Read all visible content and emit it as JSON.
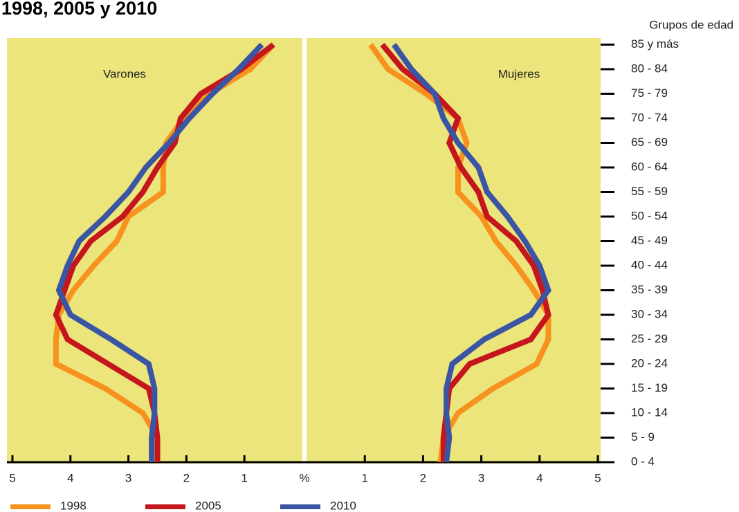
{
  "chart_data": {
    "type": "line",
    "title": "1998, 2005 y 2010",
    "ylabel": "Grupos de edad",
    "xlabel": "%",
    "categories": [
      "0 - 4",
      "5 - 9",
      "10 - 14",
      "15 - 19",
      "20 - 24",
      "25 - 29",
      "30 - 34",
      "35 - 39",
      "40 - 44",
      "45 - 49",
      "50 - 54",
      "55 - 59",
      "60 - 64",
      "65 - 69",
      "70 - 74",
      "75 - 79",
      "80 - 84",
      "85 y más"
    ],
    "xlim": [
      0,
      5
    ],
    "xticks": [
      1,
      2,
      3,
      4,
      5
    ],
    "panels": [
      {
        "title": "Varones",
        "reversed": true,
        "series": [
          {
            "name": "1998",
            "color": "#f7921e",
            "values": [
              2.5,
              2.5,
              2.75,
              3.4,
              4.25,
              4.25,
              4.2,
              3.95,
              3.6,
              3.2,
              3.0,
              2.4,
              2.4,
              2.35,
              2.05,
              1.6,
              0.9,
              0.5
            ]
          },
          {
            "name": "2005",
            "color": "#c4161c",
            "values": [
              2.5,
              2.5,
              2.55,
              2.65,
              3.35,
              4.05,
              4.25,
              4.1,
              3.95,
              3.65,
              3.1,
              2.75,
              2.5,
              2.2,
              2.1,
              1.75,
              1.05,
              0.5
            ]
          },
          {
            "name": "2010",
            "color": "#3a55a4",
            "values": [
              2.6,
              2.6,
              2.55,
              2.55,
              2.65,
              3.3,
              4.0,
              4.2,
              4.05,
              3.85,
              3.4,
              3.0,
              2.7,
              2.3,
              1.95,
              1.55,
              1.1,
              0.7
            ]
          }
        ]
      },
      {
        "title": "Mujeres",
        "reversed": false,
        "series": [
          {
            "name": "1998",
            "color": "#f7921e",
            "values": [
              2.3,
              2.35,
              2.6,
              3.2,
              3.95,
              4.15,
              4.15,
              3.9,
              3.6,
              3.25,
              3.0,
              2.6,
              2.6,
              2.75,
              2.6,
              2.05,
              1.4,
              1.1
            ]
          },
          {
            "name": "2005",
            "color": "#c4161c",
            "values": [
              2.35,
              2.35,
              2.4,
              2.45,
              2.8,
              3.85,
              4.15,
              4.05,
              3.9,
              3.6,
              3.1,
              2.95,
              2.65,
              2.45,
              2.6,
              2.2,
              1.65,
              1.3
            ]
          },
          {
            "name": "2010",
            "color": "#3a55a4",
            "values": [
              2.4,
              2.45,
              2.4,
              2.4,
              2.5,
              3.05,
              3.85,
              4.15,
              4.0,
              3.75,
              3.45,
              3.1,
              2.95,
              2.6,
              2.35,
              2.2,
              1.8,
              1.5
            ]
          }
        ]
      }
    ]
  }
}
